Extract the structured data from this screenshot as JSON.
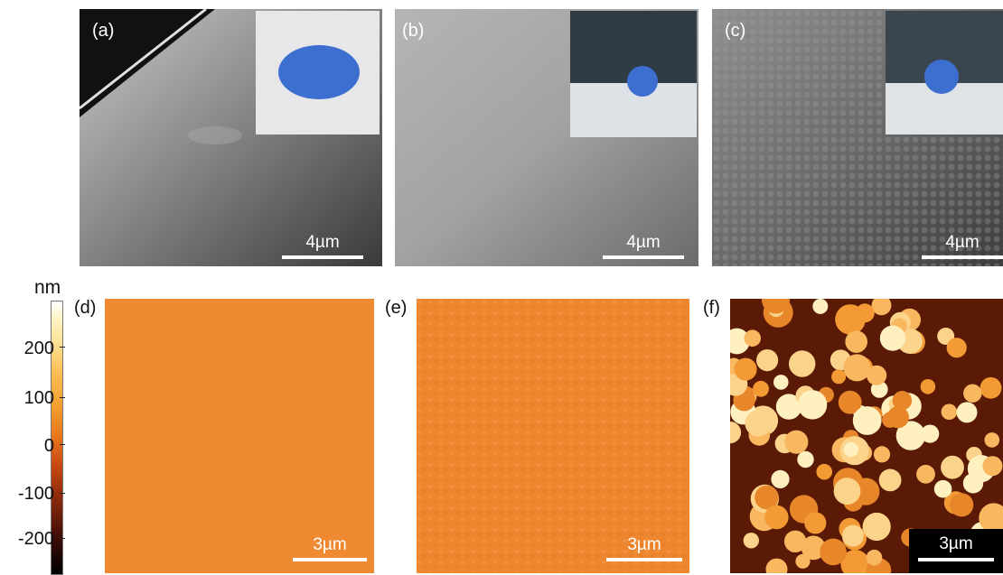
{
  "panels": {
    "a": {
      "label": "(a)",
      "scale": "4µm"
    },
    "b": {
      "label": "(b)",
      "scale": "4µm"
    },
    "c": {
      "label": "(c)",
      "scale": "4µm"
    },
    "d": {
      "label": "(d)",
      "scale": "3µm"
    },
    "e": {
      "label": "(e)",
      "scale": "3µm"
    },
    "f": {
      "label": "(f)",
      "scale": "3µm"
    }
  },
  "colorbar": {
    "unit": "nm",
    "ticks": [
      "200",
      "100",
      "0",
      "-100",
      "-200"
    ]
  },
  "colors": {
    "afm_orange": "#f08a32",
    "inset_blue": "#3d6fd0"
  }
}
